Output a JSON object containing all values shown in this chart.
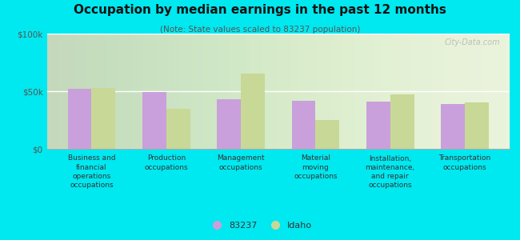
{
  "title": "Occupation by median earnings in the past 12 months",
  "subtitle": "(Note: State values scaled to 83237 population)",
  "categories": [
    "Business and\nfinancial\noperations\noccupations",
    "Production\noccupations",
    "Management\noccupations",
    "Material\nmoving\noccupations",
    "Installation,\nmaintenance,\nand repair\noccupations",
    "Transportation\noccupations"
  ],
  "values_83237": [
    52000,
    49000,
    43000,
    42000,
    41000,
    39000
  ],
  "values_idaho": [
    53000,
    35000,
    65000,
    25000,
    47000,
    40000
  ],
  "color_83237": "#c9a0dc",
  "color_idaho": "#c8d896",
  "background_chart_top": "#e8f0d8",
  "background_chart_bottom": "#f8faf0",
  "background_fig": "#00e8f0",
  "ylim": [
    0,
    100000
  ],
  "yticks": [
    0,
    50000,
    100000
  ],
  "ytick_labels": [
    "$0",
    "$50k",
    "$100k"
  ],
  "legend_label_83237": "83237",
  "legend_label_idaho": "Idaho",
  "watermark": "City-Data.com"
}
